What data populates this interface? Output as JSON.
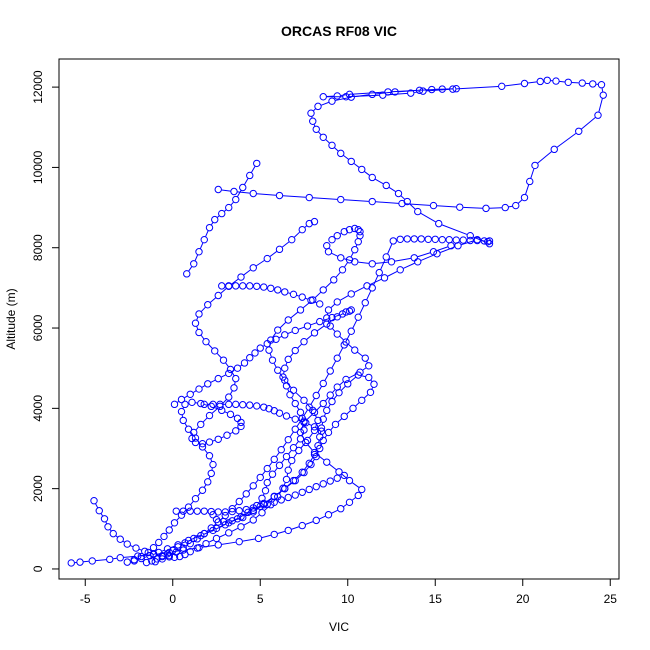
{
  "chart_data": {
    "type": "line",
    "title": "ORCAS RF08 VIC",
    "xlabel": "VIC",
    "ylabel": "Altitude (m)",
    "xlim": [
      -6.5,
      25.5
    ],
    "ylim": [
      -250,
      12700
    ],
    "x_ticks": [
      -5,
      0,
      5,
      10,
      15,
      20,
      25
    ],
    "x_tick_labels": [
      "-5",
      "0",
      "5",
      "10",
      "15",
      "20",
      "25"
    ],
    "y_ticks": [
      0,
      2000,
      4000,
      6000,
      8000,
      10000,
      12000
    ],
    "y_tick_labels": [
      "0",
      "2000",
      "4000",
      "6000",
      "8000",
      "10000",
      "12000"
    ],
    "grid": false,
    "marker": "open-circle",
    "series": [
      {
        "color": "#0000ff",
        "x": [
          -5.8,
          -5.3,
          -4.6,
          -3.6,
          -3.0,
          -2.0,
          -1.1,
          -0.2,
          0.6,
          1.5,
          2.6,
          3.8,
          4.9,
          5.8,
          6.6,
          7.4,
          8.2,
          8.9,
          9.6,
          10.1,
          10.6,
          10.8,
          10.1,
          9.5,
          8.8,
          8.1,
          7.6,
          7.3,
          7.5,
          8.1,
          8.6,
          9.0,
          9.4,
          9.9,
          10.7,
          11.2,
          11.0,
          10.4,
          9.9,
          9.4,
          9.0,
          8.8,
          8.9,
          9.4,
          10.2,
          11.1,
          12.1,
          13.0,
          14.0,
          15.1,
          16.3,
          17.4,
          18.0,
          18.1,
          17.0,
          15.2,
          14.0,
          13.4,
          12.9,
          12.2,
          11.4,
          10.8,
          10.2,
          9.6,
          9.1,
          8.6,
          8.2,
          8.0,
          7.9,
          8.3,
          9.1,
          10.2,
          11.4,
          12.7,
          14.1,
          15.4,
          16.2,
          14.8,
          12.3,
          10.1,
          9.4,
          8.6,
          9.9,
          12.0,
          13.6,
          14.3,
          16.0,
          18.8,
          20.1,
          21.0,
          21.4,
          21.9,
          22.6,
          23.4,
          24.0,
          24.5,
          24.6,
          24.3,
          23.2,
          21.8,
          20.7,
          20.4,
          20.1,
          19.6,
          19.0,
          17.9,
          16.4,
          14.9,
          13.1,
          11.4,
          9.6,
          7.8,
          6.1,
          4.6,
          3.5,
          2.6
        ],
        "y": [
          150,
          170,
          200,
          240,
          280,
          320,
          360,
          410,
          470,
          530,
          600,
          680,
          760,
          860,
          960,
          1080,
          1210,
          1350,
          1500,
          1660,
          1830,
          1980,
          2200,
          2420,
          2660,
          2900,
          3150,
          3400,
          3650,
          3900,
          4120,
          4330,
          4530,
          4720,
          4900,
          5060,
          5250,
          5450,
          5650,
          5850,
          6050,
          6250,
          6450,
          6650,
          6850,
          7050,
          7250,
          7450,
          7650,
          7850,
          8050,
          8200,
          8150,
          8100,
          8300,
          8600,
          8900,
          9150,
          9350,
          9550,
          9750,
          9950,
          10150,
          10350,
          10550,
          10750,
          10950,
          11150,
          11350,
          11520,
          11650,
          11750,
          11820,
          11880,
          11920,
          11950,
          11960,
          11940,
          11880,
          11820,
          11780,
          11760,
          11760,
          11800,
          11850,
          11900,
          11950,
          12020,
          12090,
          12140,
          12170,
          12150,
          12120,
          12100,
          12080,
          12060,
          11800,
          11300,
          10900,
          10450,
          10050,
          9650,
          9250,
          9050,
          9000,
          8980,
          9010,
          9050,
          9100,
          9150,
          9200,
          9250,
          9300,
          9350,
          9400,
          9450
        ]
      },
      {
        "color": "#0000ff",
        "x": [
          -4.5,
          -4.2,
          -3.9,
          -3.7,
          -3.4,
          -3.0,
          -2.6,
          -2.1,
          -1.6,
          -1.1,
          -0.6,
          -0.2,
          0.1,
          0.4,
          0.7,
          1.0,
          1.4,
          1.9,
          2.5,
          3.2,
          3.9,
          4.6,
          5.1,
          5.6,
          6.0,
          6.3,
          6.5,
          6.6,
          6.8,
          7.2,
          7.7,
          8.1,
          8.3,
          8.0,
          7.5,
          6.9,
          6.4,
          6.0,
          5.7,
          5.5,
          5.6,
          6.0,
          6.6,
          7.3,
          8.0,
          8.6,
          9.2,
          9.7,
          10.1,
          10.4,
          10.6,
          10.7,
          10.7,
          10.6,
          10.4,
          10.1,
          9.8,
          9.4,
          9.1,
          8.8,
          8.9,
          9.6,
          10.4,
          11.4,
          12.5,
          13.8,
          14.9,
          15.9
        ],
        "y": [
          1700,
          1450,
          1250,
          1050,
          880,
          740,
          620,
          520,
          440,
          380,
          330,
          300,
          290,
          310,
          360,
          430,
          520,
          630,
          760,
          900,
          1050,
          1220,
          1400,
          1600,
          1800,
          2010,
          2230,
          2460,
          2700,
          2950,
          3200,
          3450,
          3700,
          3950,
          4200,
          4450,
          4700,
          4950,
          5200,
          5450,
          5700,
          5950,
          6200,
          6450,
          6700,
          6950,
          7200,
          7450,
          7700,
          7950,
          8150,
          8300,
          8400,
          8450,
          8480,
          8450,
          8400,
          8300,
          8200,
          8050,
          7900,
          7750,
          7650,
          7600,
          7650,
          7750,
          7900,
          8050
        ]
      },
      {
        "color": "#0000ff",
        "x": [
          -2.6,
          -2.2,
          -1.8,
          -1.4,
          -1.1,
          -0.8,
          -0.5,
          -0.2,
          0.1,
          0.5,
          0.9,
          1.3,
          1.7,
          2.0,
          2.2,
          2.3,
          2.1,
          1.7,
          1.3,
          0.9,
          0.6,
          0.5,
          0.7,
          1.1,
          1.6,
          2.2,
          2.8,
          3.3,
          3.7,
          3.9,
          3.9,
          3.6,
          3.1,
          2.6,
          2.1,
          1.7,
          1.3,
          1.1,
          1.2,
          1.6,
          2.1,
          2.7,
          3.2,
          3.5,
          3.6,
          3.3,
          2.9,
          2.4,
          1.9,
          1.5,
          1.3,
          1.5,
          2.0,
          2.6,
          3.2,
          3.9,
          4.6,
          5.4,
          6.1,
          6.8,
          7.4,
          7.8,
          8.1
        ],
        "y": [
          170,
          230,
          310,
          410,
          530,
          660,
          810,
          970,
          1150,
          1340,
          1540,
          1750,
          1960,
          2170,
          2380,
          2600,
          2820,
          3040,
          3260,
          3480,
          3700,
          3920,
          4100,
          4150,
          4120,
          4050,
          3950,
          3850,
          3750,
          3650,
          3550,
          3440,
          3330,
          3230,
          3160,
          3120,
          3150,
          3250,
          3400,
          3600,
          3820,
          4050,
          4280,
          4510,
          4740,
          4970,
          5200,
          5430,
          5660,
          5890,
          6120,
          6350,
          6580,
          6810,
          7040,
          7270,
          7500,
          7730,
          7960,
          8200,
          8450,
          8600,
          8650
        ]
      },
      {
        "color": "#0000ff",
        "x": [
          -2.2,
          -1.8,
          -1.3,
          -0.8,
          -0.3,
          0.3,
          0.9,
          1.6,
          2.3,
          3.0,
          3.7,
          4.3,
          4.8,
          5.1,
          5.3,
          5.4,
          5.7,
          6.1,
          6.5,
          6.9,
          7.3,
          7.5,
          7.5,
          7.3,
          7.0,
          6.7,
          6.5,
          6.3,
          6.4,
          6.6,
          7.0,
          7.5,
          8.1,
          8.8,
          9.4,
          9.9,
          10.2,
          10.1,
          9.7,
          9.1,
          8.4,
          7.7,
          7.0,
          6.4,
          5.9,
          5.4,
          5.0,
          4.7,
          4.4,
          4.1,
          3.7,
          3.2,
          2.6,
          2.0,
          1.5,
          1.0,
          0.5,
          0.1
        ],
        "y": [
          200,
          260,
          330,
          410,
          500,
          600,
          710,
          830,
          960,
          1100,
          1250,
          1410,
          1580,
          1760,
          1950,
          2150,
          2360,
          2580,
          2800,
          3020,
          3240,
          3460,
          3680,
          3900,
          4120,
          4340,
          4560,
          4780,
          5000,
          5220,
          5440,
          5660,
          5880,
          6100,
          6280,
          6400,
          6450,
          6420,
          6350,
          6260,
          6160,
          6050,
          5940,
          5830,
          5720,
          5610,
          5500,
          5380,
          5260,
          5130,
          5000,
          4870,
          4740,
          4610,
          4480,
          4350,
          4220,
          4100
        ]
      },
      {
        "color": "#0000ff",
        "x": [
          -1.5,
          -1.2,
          -0.9,
          -0.6,
          -0.3,
          0.0,
          0.3,
          0.7,
          1.2,
          1.8,
          2.5,
          3.2,
          3.9,
          4.6,
          5.2,
          5.8,
          6.4,
          6.9,
          7.4,
          7.8,
          8.1,
          8.3,
          8.4,
          8.5,
          8.6,
          8.8,
          9.1,
          9.5,
          10.0,
          10.6,
          11.2,
          11.5,
          11.3,
          10.8,
          10.3,
          9.8,
          9.3,
          8.9,
          8.6,
          8.4,
          8.2,
          7.9,
          7.5,
          7.0,
          6.4,
          5.8,
          5.2,
          4.6,
          4.0,
          3.4,
          2.9,
          2.5,
          2.3
        ],
        "y": [
          160,
          200,
          250,
          310,
          380,
          460,
          550,
          650,
          760,
          880,
          1010,
          1150,
          1300,
          1460,
          1630,
          1810,
          2000,
          2200,
          2410,
          2630,
          2850,
          3070,
          3290,
          3510,
          3730,
          3950,
          4170,
          4390,
          4610,
          4830,
          4770,
          4600,
          4400,
          4200,
          4000,
          3800,
          3600,
          3400,
          3200,
          3000,
          2800,
          2600,
          2400,
          2200,
          2000,
          1800,
          1600,
          1420,
          1280,
          1200,
          1180,
          1230,
          1350
        ]
      },
      {
        "color": "#0000ff",
        "x": [
          -1.0,
          -0.6,
          -0.2,
          0.2,
          0.6,
          1.0,
          1.4,
          1.8,
          2.2,
          2.6,
          3.0,
          3.4,
          3.8,
          4.2,
          4.6,
          5.0,
          5.4,
          5.8,
          6.2,
          6.6,
          7.0,
          7.4,
          7.8,
          8.2,
          8.6,
          9.0,
          9.4,
          9.8,
          10.2,
          10.6,
          11.0,
          11.4,
          11.8,
          12.2,
          12.6,
          13.0,
          13.4,
          13.8,
          14.2,
          14.6,
          15.0,
          15.4,
          15.8,
          16.2,
          16.6,
          17.0,
          17.4,
          17.8,
          18.1
        ],
        "y": [
          180,
          250,
          330,
          420,
          520,
          630,
          750,
          880,
          1020,
          1170,
          1330,
          1500,
          1680,
          1870,
          2070,
          2280,
          2500,
          2730,
          2970,
          3220,
          3480,
          3750,
          4030,
          4320,
          4620,
          4930,
          5250,
          5580,
          5920,
          6270,
          6630,
          7000,
          7380,
          7770,
          8170,
          8210,
          8220,
          8220,
          8220,
          8210,
          8210,
          8200,
          8200,
          8190,
          8190,
          8180,
          8180,
          8170,
          8170
        ]
      },
      {
        "color": "#0000ff",
        "x": [
          0.2,
          0.6,
          1.0,
          1.4,
          1.8,
          2.2,
          2.6,
          3.0,
          3.4,
          3.8,
          4.2,
          4.6,
          5.0,
          5.4,
          5.8,
          6.2,
          6.6,
          7.0,
          7.4,
          7.8,
          8.2,
          8.6,
          9.0,
          9.4,
          9.8
        ],
        "y": [
          1440,
          1440,
          1440,
          1440,
          1440,
          1430,
          1420,
          1420,
          1430,
          1450,
          1480,
          1520,
          1560,
          1610,
          1660,
          1720,
          1780,
          1840,
          1910,
          1980,
          2050,
          2120,
          2190,
          2260,
          2330
        ]
      },
      {
        "color": "#0000ff",
        "x": [
          1.8,
          2.3,
          2.7,
          3.2,
          3.6,
          4.0,
          4.4,
          4.8,
          5.2,
          5.5,
          5.8,
          6.1,
          6.5,
          7.0,
          7.6,
          8.1,
          8.5
        ],
        "y": [
          4100,
          4100,
          4100,
          4100,
          4100,
          4090,
          4080,
          4060,
          4030,
          3990,
          3940,
          3880,
          3810,
          3730,
          3640,
          3540,
          3430
        ]
      },
      {
        "color": "#0000ff",
        "x": [
          2.8,
          3.2,
          3.6,
          4.0,
          4.4,
          4.8,
          5.2,
          5.6,
          6.0,
          6.4,
          6.9,
          7.4,
          7.9,
          8.4
        ],
        "y": [
          7050,
          7050,
          7050,
          7050,
          7050,
          7040,
          7020,
          6990,
          6950,
          6900,
          6840,
          6770,
          6690,
          6600
        ]
      },
      {
        "color": "#0000ff",
        "x": [
          0.8,
          1.2,
          1.5,
          1.8,
          2.1,
          2.4,
          2.8,
          3.2,
          3.6,
          4.0,
          4.4,
          4.8
        ],
        "y": [
          7350,
          7600,
          7900,
          8200,
          8500,
          8700,
          8850,
          9000,
          9200,
          9500,
          9800,
          10100
        ]
      }
    ]
  }
}
